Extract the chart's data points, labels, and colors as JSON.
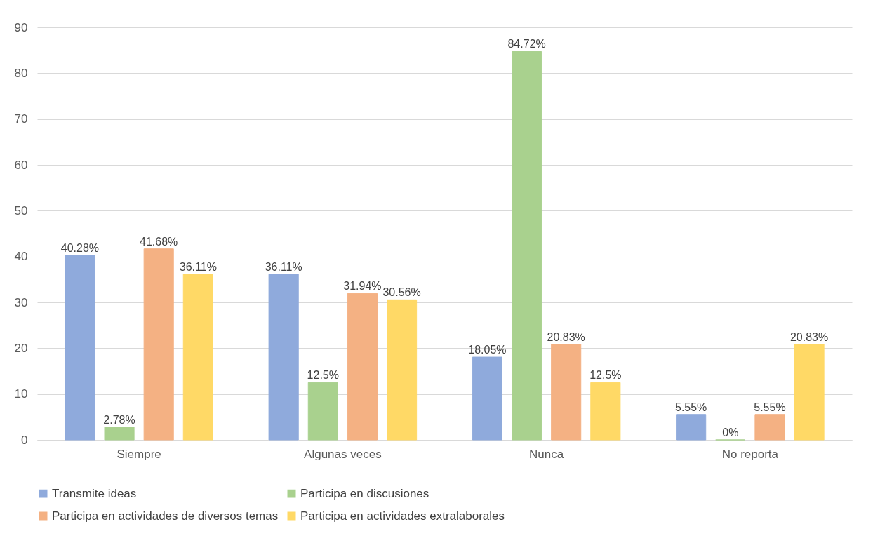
{
  "chart_data": {
    "type": "bar",
    "categories": [
      "Siempre",
      "Algunas veces",
      "Nunca",
      "No reporta"
    ],
    "series": [
      {
        "name": "Transmite ideas",
        "color": "#8faadc",
        "values": [
          40.28,
          36.11,
          18.05,
          5.55
        ],
        "value_labels": [
          "40.28%",
          "36.11%",
          "18.05%",
          "5.55%"
        ]
      },
      {
        "name": "Participa en discusiones",
        "color": "#a9d18e",
        "values": [
          2.78,
          12.5,
          84.72,
          0
        ],
        "value_labels": [
          "2.78%",
          "12.5%",
          "84.72%",
          "0%"
        ]
      },
      {
        "name": "Participa en actividades de diversos temas",
        "color": "#f4b183",
        "values": [
          41.68,
          31.94,
          20.83,
          5.55
        ],
        "value_labels": [
          "41.68%",
          "31.94%",
          "20.83%",
          "5.55%"
        ]
      },
      {
        "name": "Participa en actividades extralaborales",
        "color": "#ffd966",
        "values": [
          36.11,
          30.56,
          12.5,
          20.83
        ],
        "value_labels": [
          "36.11%",
          "30.56%",
          "12.5%",
          "20.83%"
        ]
      }
    ],
    "ylim": [
      0,
      90
    ],
    "yticks": [
      0,
      10,
      20,
      30,
      40,
      50,
      60,
      70,
      80,
      90
    ],
    "grid": "y",
    "legend": "bottom"
  }
}
